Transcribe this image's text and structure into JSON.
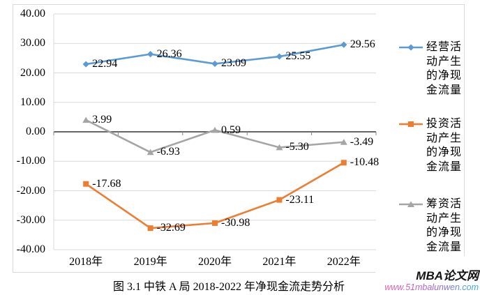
{
  "chart_data": {
    "type": "line",
    "title": "",
    "categories": [
      "2018年",
      "2019年",
      "2020年",
      "2021年",
      "2022年"
    ],
    "ylim": [
      -40,
      40
    ],
    "grid": true,
    "legend_position": "right",
    "y_ticks": [
      {
        "label": "40.00",
        "value": 40
      },
      {
        "label": "30.00",
        "value": 30
      },
      {
        "label": "20.00",
        "value": 20
      },
      {
        "label": "10.00",
        "value": 10
      },
      {
        "label": "0.00",
        "value": 0
      },
      {
        "label": "-10.00",
        "value": -10
      },
      {
        "label": "-20.00",
        "value": -20
      },
      {
        "label": "-30.00",
        "value": -30
      },
      {
        "label": "-40.00",
        "value": -40
      }
    ],
    "series": [
      {
        "name": "经营活动产生的净现金流量",
        "marker": "diamond",
        "color": "#5B9BD5",
        "values": [
          22.94,
          26.36,
          23.09,
          25.55,
          29.56
        ],
        "labels": [
          "22.94",
          "26.36",
          "23.09",
          "25.55",
          "29.56"
        ]
      },
      {
        "name": "投资活动产生的净现金流量",
        "marker": "square",
        "color": "#ED7D31",
        "values": [
          -17.68,
          -32.69,
          -30.98,
          -23.11,
          -10.48
        ],
        "labels": [
          "-17.68",
          "-32.69",
          "-30.98",
          "-23.11",
          "-10.48"
        ]
      },
      {
        "name": "筹资活动产生的净现金流量",
        "marker": "triangle",
        "color": "#A5A5A5",
        "values": [
          3.99,
          -6.93,
          0.59,
          -5.3,
          -3.49
        ],
        "labels": [
          "3.99",
          "-6.93",
          "0.59",
          "-5.30",
          "-3.49"
        ]
      }
    ]
  },
  "caption": "图 3.1 中铁 A 局 2018-2022 年净现金流走势分析",
  "watermark": {
    "title": "MBA论文网",
    "url": "www.51mbalunwen.com"
  },
  "colors": {
    "grid": "#D9D9D9",
    "zero_axis": "#666666",
    "tick": "#808080",
    "frame": "#D9D9D9",
    "operating_blue": "#5B9BD5",
    "investing_orange": "#ED7D31",
    "financing_gray": "#A5A5A5"
  }
}
